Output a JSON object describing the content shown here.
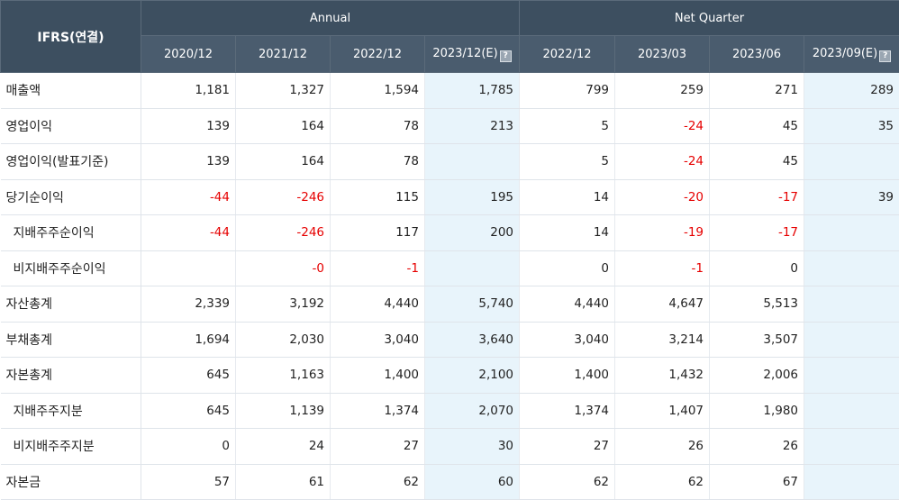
{
  "header": {
    "ifrs_label": "IFRS(연결)",
    "group_annual": "Annual",
    "group_quarter": "Net Quarter",
    "columns": [
      "2020/12",
      "2021/12",
      "2022/12",
      "2023/12(E)",
      "2022/12",
      "2023/03",
      "2023/06",
      "2023/09(E)"
    ]
  },
  "rows": [
    {
      "label": "매출액",
      "indent": false,
      "cells": [
        "1,181",
        "1,327",
        "1,594",
        "1,785",
        "799",
        "259",
        "271",
        "289"
      ]
    },
    {
      "label": "영업이익",
      "indent": false,
      "cells": [
        "139",
        "164",
        "78",
        "213",
        "5",
        "-24",
        "45",
        "35"
      ]
    },
    {
      "label": "영업이익(발표기준)",
      "indent": false,
      "cells": [
        "139",
        "164",
        "78",
        "",
        "5",
        "-24",
        "45",
        ""
      ]
    },
    {
      "label": "당기순이익",
      "indent": false,
      "cells": [
        "-44",
        "-246",
        "115",
        "195",
        "14",
        "-20",
        "-17",
        "39"
      ]
    },
    {
      "label": "지배주주순이익",
      "indent": true,
      "cells": [
        "-44",
        "-246",
        "117",
        "200",
        "14",
        "-19",
        "-17",
        ""
      ]
    },
    {
      "label": "비지배주주순이익",
      "indent": true,
      "cells": [
        "",
        "-0",
        "-1",
        "",
        "0",
        "-1",
        "0",
        ""
      ]
    },
    {
      "label": "자산총계",
      "indent": false,
      "cells": [
        "2,339",
        "3,192",
        "4,440",
        "5,740",
        "4,440",
        "4,647",
        "5,513",
        ""
      ]
    },
    {
      "label": "부채총계",
      "indent": false,
      "cells": [
        "1,694",
        "2,030",
        "3,040",
        "3,640",
        "3,040",
        "3,214",
        "3,507",
        ""
      ]
    },
    {
      "label": "자본총계",
      "indent": false,
      "cells": [
        "645",
        "1,163",
        "1,400",
        "2,100",
        "1,400",
        "1,432",
        "2,006",
        ""
      ]
    },
    {
      "label": "지배주주지분",
      "indent": true,
      "cells": [
        "645",
        "1,139",
        "1,374",
        "2,070",
        "1,374",
        "1,407",
        "1,980",
        ""
      ]
    },
    {
      "label": "비지배주주지분",
      "indent": true,
      "cells": [
        "0",
        "24",
        "27",
        "30",
        "27",
        "26",
        "26",
        ""
      ]
    },
    {
      "label": "자본금",
      "indent": false,
      "cells": [
        "57",
        "61",
        "62",
        "60",
        "62",
        "62",
        "67",
        ""
      ]
    }
  ],
  "estimate_columns": [
    3,
    7
  ],
  "icons": {
    "estimate_info": "help-icon"
  },
  "colors": {
    "header_bg": "#3d4f60",
    "estimate_bg": "#e8f4fb",
    "negative": "#e60000"
  }
}
